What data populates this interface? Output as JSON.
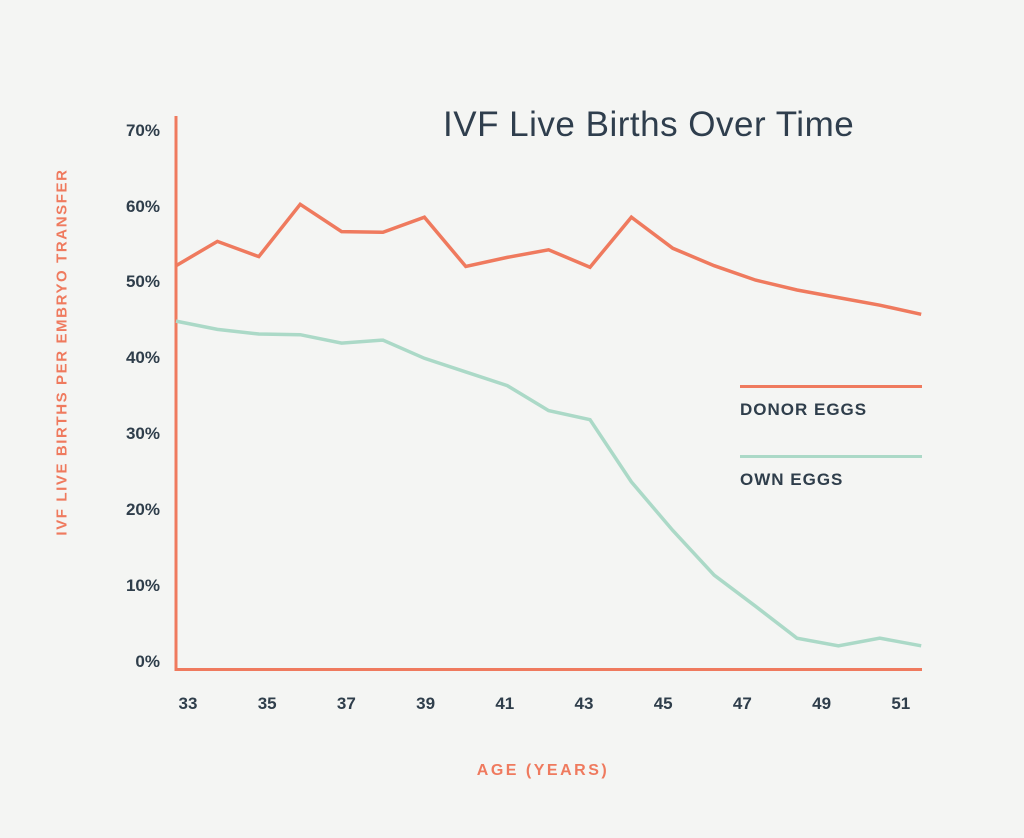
{
  "chart_data": {
    "type": "line",
    "title": "IVF Live Births Over Time",
    "xlabel": "AGE (YEARS)",
    "ylabel": "IVF LIVE BIRTHS PER EMBRYO TRANSFER",
    "x": [
      33,
      34,
      35,
      36,
      37,
      38,
      39,
      40,
      41,
      42,
      43,
      44,
      45,
      46,
      47,
      48,
      49,
      50,
      51
    ],
    "x_tick_labels": [
      "33",
      "35",
      "37",
      "39",
      "41",
      "43",
      "45",
      "47",
      "49",
      "51"
    ],
    "x_ticks": [
      33,
      35,
      37,
      39,
      41,
      43,
      45,
      47,
      49,
      51
    ],
    "y_tick_labels": [
      "0%",
      "10%",
      "20%",
      "30%",
      "40%",
      "50%",
      "60%",
      "70%"
    ],
    "y_ticks": [
      0,
      10,
      20,
      30,
      40,
      50,
      60,
      70
    ],
    "ylim": [
      0,
      70
    ],
    "grid": "off",
    "legend_position": "right",
    "series": [
      {
        "name": "DONOR EGGS",
        "color": "#ef7a5e",
        "values": [
          52.2,
          55.4,
          53.4,
          60.3,
          56.7,
          56.6,
          58.6,
          52.1,
          53.3,
          54.3,
          52.0,
          58.6,
          54.5,
          52.2,
          50.3,
          49.0,
          48.0,
          47.0,
          45.8
        ]
      },
      {
        "name": "OWN EGGS",
        "color": "#abd9c7",
        "values": [
          44.9,
          43.8,
          43.2,
          43.1,
          42.0,
          42.4,
          40.0,
          38.2,
          36.4,
          33.1,
          31.9,
          23.7,
          17.3,
          11.4,
          7.3,
          3.1,
          2.1,
          3.1,
          2.1
        ]
      }
    ],
    "colors": {
      "axis": "#ef7a5e",
      "background": "#f4f5f3",
      "text": "#2f3e4b",
      "donor_eggs": "#ef7a5e",
      "own_eggs": "#abd9c7"
    },
    "legend": [
      {
        "label": "DONOR EGGS"
      },
      {
        "label": "OWN EGGS"
      }
    ]
  }
}
